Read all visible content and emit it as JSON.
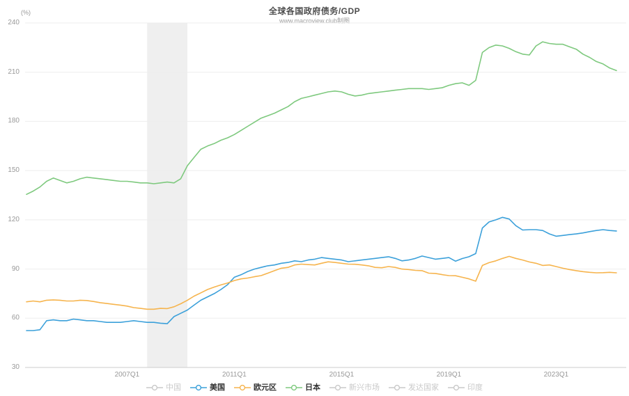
{
  "header": {
    "title": "全球各国政府债务/GDP",
    "subtitle": "www.macroview.club制图"
  },
  "colors": {
    "usa_line": "#3ba0da",
    "eurozone_line": "#f6b44d",
    "japan_line": "#7ec97e",
    "inactive_legend": "#c9c9c9",
    "grid_line": "#ededed",
    "axis_line": "#cccccc",
    "tick_text": "#999999",
    "recession_band": "#e5e5e5"
  },
  "chart_data": {
    "type": "line",
    "title": "全球各国政府债务/GDP",
    "subtitle": "www.macroview.club制图",
    "unit_label": "(%)",
    "ylim": [
      30,
      240
    ],
    "y_ticks": [
      30,
      60,
      90,
      120,
      150,
      180,
      210,
      240
    ],
    "x_tick_labels": [
      "2007Q1",
      "2011Q1",
      "2015Q1",
      "2019Q1",
      "2023Q1"
    ],
    "start_quarter": "2003Q2",
    "end_quarter": "2025Q2",
    "grid": "horizontal-only",
    "legend_position": "bottom-center",
    "recession_band": {
      "from": "2007Q4",
      "to": "2009Q2"
    },
    "legend": [
      {
        "key": "china",
        "label": "中国",
        "active": false
      },
      {
        "key": "usa",
        "label": "美国",
        "active": true,
        "color": "#3ba0da"
      },
      {
        "key": "eurozone",
        "label": "欧元区",
        "active": true,
        "color": "#f6b44d"
      },
      {
        "key": "japan",
        "label": "日本",
        "active": true,
        "color": "#7ec97e"
      },
      {
        "key": "emerging-markets",
        "label": "新兴市场",
        "active": false
      },
      {
        "key": "developed-countries",
        "label": "发达国家",
        "active": false
      },
      {
        "key": "india",
        "label": "印度",
        "active": false
      }
    ],
    "series": [
      {
        "name": "美国",
        "key": "usa",
        "color": "#3ba0da",
        "values": [
          52.5,
          52.5,
          53,
          58.5,
          59,
          58.5,
          58.5,
          59.5,
          59,
          58.5,
          58.5,
          58,
          57.5,
          57.5,
          57.5,
          58,
          58.5,
          58,
          57.5,
          57.5,
          57,
          56.7,
          61,
          63,
          65,
          68,
          71,
          73,
          75,
          77.5,
          80.5,
          85,
          86.5,
          88.5,
          90,
          91,
          92,
          92.5,
          93.5,
          94,
          95,
          94.5,
          95.5,
          96,
          97,
          96.5,
          96,
          95.5,
          94.5,
          95,
          95.5,
          96,
          96.5,
          97,
          97.5,
          96.5,
          95,
          95.5,
          96.5,
          97.9,
          97,
          96,
          96.5,
          97,
          94.8,
          96.4,
          97.5,
          99.4,
          115,
          118.7,
          120,
          121.5,
          120.5,
          116.4,
          113.8,
          114,
          114,
          113.5,
          111.4,
          110,
          110.5,
          111,
          111.4,
          112,
          112.8,
          113.5,
          114,
          113.5,
          113.2
        ]
      },
      {
        "name": "欧元区",
        "key": "eurozone",
        "color": "#f6b44d",
        "values": [
          70,
          70.5,
          70,
          71,
          71.2,
          71,
          70.5,
          70.5,
          71,
          70.8,
          70.2,
          69.5,
          69,
          68.5,
          68,
          67.4,
          66.5,
          66,
          65.5,
          65.5,
          66,
          65.9,
          67,
          68.8,
          71,
          73.5,
          75.5,
          77.5,
          79,
          80.3,
          81.5,
          83,
          84,
          84.5,
          85.3,
          86,
          87.5,
          89,
          90.5,
          91,
          92.5,
          93,
          92.7,
          92.5,
          93.5,
          94.4,
          94,
          93.5,
          93,
          92.9,
          92.5,
          92,
          91,
          90.8,
          91.5,
          91,
          90,
          89.7,
          89.2,
          89,
          87.5,
          87.3,
          86.6,
          86,
          85.9,
          85,
          84,
          82.6,
          92.2,
          93.9,
          95,
          96.5,
          97.7,
          96.5,
          95.5,
          94.3,
          93.5,
          92.2,
          92.5,
          91.5,
          90.5,
          89.7,
          89,
          88.4,
          88,
          87.7,
          87.8,
          88,
          87.7
        ]
      },
      {
        "name": "日本",
        "key": "japan",
        "color": "#7ec97e",
        "values": [
          135.5,
          137.5,
          140,
          143.5,
          145.5,
          144,
          142.5,
          143.5,
          145,
          146,
          145.5,
          145,
          144.5,
          144,
          143.5,
          143.5,
          143,
          142.5,
          142.5,
          142,
          142.5,
          143,
          142.5,
          145,
          153,
          158,
          163,
          165,
          166.5,
          168.5,
          170,
          172,
          174.5,
          177,
          179.5,
          182,
          183.5,
          185,
          187,
          189,
          192,
          194,
          195,
          196,
          197,
          198,
          198.5,
          198,
          196.5,
          195.5,
          196,
          197,
          197.5,
          198,
          198.5,
          199,
          199.5,
          200,
          200,
          200,
          199.5,
          200,
          200.5,
          202,
          203,
          203.5,
          202,
          205,
          222,
          225,
          226.5,
          226,
          224.5,
          222.5,
          221,
          220.5,
          226,
          228.5,
          227.5,
          227,
          227,
          225.5,
          224,
          221,
          219,
          216.5,
          215,
          212.5,
          211
        ]
      }
    ]
  }
}
